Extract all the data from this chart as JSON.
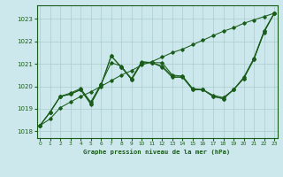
{
  "background_color": "#cce8ec",
  "grid_color": "#aacccc",
  "line_color": "#1a5c1a",
  "title": "Graphe pression niveau de la mer (hPa)",
  "xlim": [
    -0.3,
    23.3
  ],
  "ylim": [
    1017.7,
    1023.6
  ],
  "yticks": [
    1018,
    1019,
    1020,
    1021,
    1022,
    1023
  ],
  "xticks": [
    0,
    1,
    2,
    3,
    4,
    5,
    6,
    7,
    8,
    9,
    10,
    11,
    12,
    13,
    14,
    15,
    16,
    17,
    18,
    19,
    20,
    21,
    22,
    23
  ],
  "s_straight": [
    1018.25,
    1018.55,
    1019.05,
    1019.3,
    1019.55,
    1019.75,
    1020.0,
    1020.25,
    1020.5,
    1020.7,
    1020.95,
    1021.1,
    1021.3,
    1021.5,
    1021.65,
    1021.85,
    1022.05,
    1022.25,
    1022.45,
    1022.6,
    1022.8,
    1022.95,
    1023.1,
    1023.25
  ],
  "s_wavy1": [
    1018.25,
    1018.85,
    1019.55,
    1019.65,
    1019.85,
    1019.2,
    1020.05,
    1021.35,
    1020.85,
    1020.35,
    1021.1,
    1021.05,
    1020.85,
    1020.4,
    1020.4,
    1019.85,
    1019.85,
    1019.55,
    1019.45,
    1019.85,
    1020.35,
    1021.2,
    1022.45,
    1023.25
  ],
  "s_wavy2": [
    1018.25,
    1018.85,
    1019.55,
    1019.7,
    1019.9,
    1019.3,
    1020.1,
    1021.05,
    1020.9,
    1020.3,
    1021.05,
    1021.05,
    1021.05,
    1020.5,
    1020.45,
    1019.9,
    1019.85,
    1019.6,
    1019.5,
    1019.85,
    1020.4,
    1021.25,
    1022.45,
    1023.25
  ],
  "s_wavy3": [
    1018.25,
    1018.85,
    1019.55,
    1019.65,
    1019.85,
    1019.25,
    1020.05,
    1021.35,
    1020.85,
    1020.3,
    1021.05,
    1021.05,
    1020.9,
    1020.45,
    1020.45,
    1019.85,
    1019.85,
    1019.55,
    1019.45,
    1019.85,
    1020.35,
    1021.2,
    1022.4,
    1023.25
  ]
}
